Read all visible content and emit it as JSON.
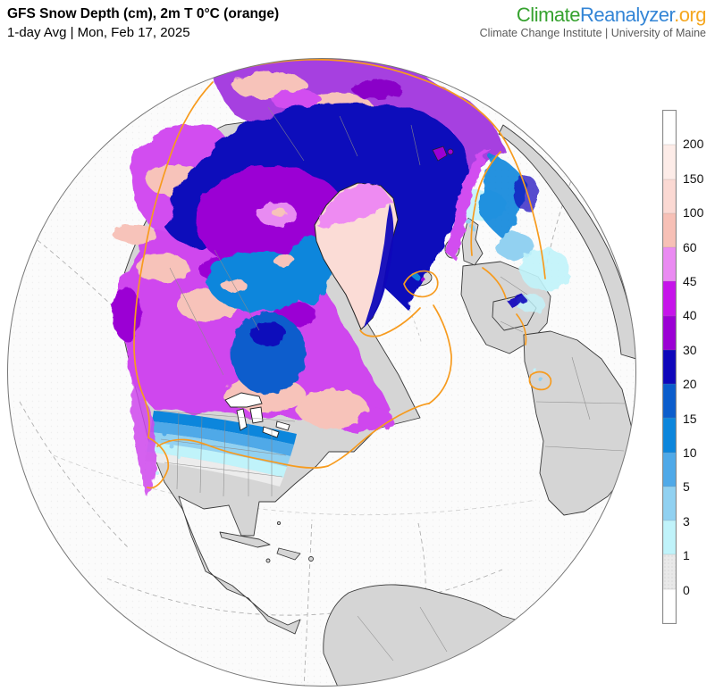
{
  "header": {
    "title": "GFS Snow Depth (cm), 2m T 0°C (orange)",
    "subtitle": "1-day Avg | Mon, Feb 17, 2025",
    "logo": {
      "part1": "Climate",
      "part2": "Reanalyzer",
      "part3": ".org",
      "tagline": "Climate Change Institute | University of Maine",
      "colors": {
        "part1": "#36a22f",
        "part2": "#3385d6",
        "part3": "#f5a71f"
      }
    }
  },
  "map": {
    "kind": "orthographic-globe",
    "variable": "snow depth (cm)",
    "model": "GFS",
    "overlay_contour": "2m temperature 0°C",
    "colors": {
      "ocean": "#fbfbfb",
      "land_no_snow": "#d5d5d5",
      "coastline": "#333333",
      "country_border": "#8a8a8a",
      "graticule": "#b0b0b0",
      "freezing_line": "#f79b1e",
      "globe_rim": "#777777"
    }
  },
  "legend": {
    "labels": [
      "200",
      "150",
      "100",
      "60",
      "45",
      "40",
      "30",
      "20",
      "15",
      "10",
      "5",
      "3",
      "1",
      "0"
    ],
    "segments": [
      {
        "color": "#ffffff",
        "stipple": false
      },
      {
        "color": "#fdece8",
        "stipple": false
      },
      {
        "color": "#fbd9d3",
        "stipple": false
      },
      {
        "color": "#f7c0b6",
        "stipple": false
      },
      {
        "color": "#ea8bf2",
        "stipple": false
      },
      {
        "color": "#c614ea",
        "stipple": false
      },
      {
        "color": "#9b00d4",
        "stipple": false
      },
      {
        "color": "#0f07bb",
        "stipple": false
      },
      {
        "color": "#0b5dcc",
        "stipple": false
      },
      {
        "color": "#0c86dc",
        "stipple": false
      },
      {
        "color": "#4fa9e8",
        "stipple": false
      },
      {
        "color": "#91d1f1",
        "stipple": false
      },
      {
        "color": "#c0f3fa",
        "stipple": false
      },
      {
        "color": "#e9e9e9",
        "stipple": true
      },
      {
        "color": "#ffffff",
        "stipple": false
      }
    ]
  }
}
